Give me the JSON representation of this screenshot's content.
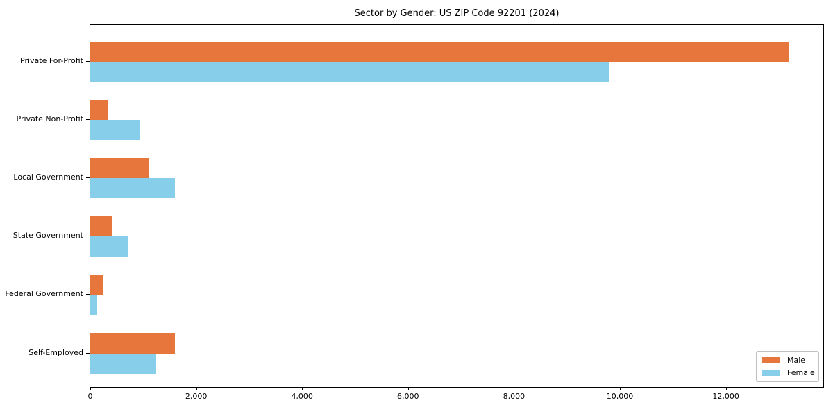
{
  "figure": {
    "background": "#ffffff"
  },
  "chart_data": {
    "type": "bar",
    "orientation": "horizontal",
    "title": "Sector by Gender: US ZIP Code 92201 (2024)",
    "xlabel": "",
    "ylabel": "",
    "categories": [
      "Private For-Profit",
      "Private Non-Profit",
      "Local Government",
      "State Government",
      "Federal Government",
      "Self-Employed"
    ],
    "series": [
      {
        "name": "Male",
        "color": "#E6763B",
        "values": [
          13180,
          340,
          1100,
          410,
          230,
          1600
        ]
      },
      {
        "name": "Female",
        "color": "#87CEEB",
        "values": [
          9800,
          930,
          1600,
          720,
          130,
          1240
        ]
      }
    ],
    "xlim": [
      0,
      13840
    ],
    "xticks": [
      0,
      2000,
      4000,
      6000,
      8000,
      10000,
      12000
    ],
    "xtick_labels": [
      "0",
      "2,000",
      "4,000",
      "6,000",
      "8,000",
      "10,000",
      "12,000"
    ],
    "grid": false,
    "legend_position": "lower right",
    "spine_color": "#000000"
  }
}
